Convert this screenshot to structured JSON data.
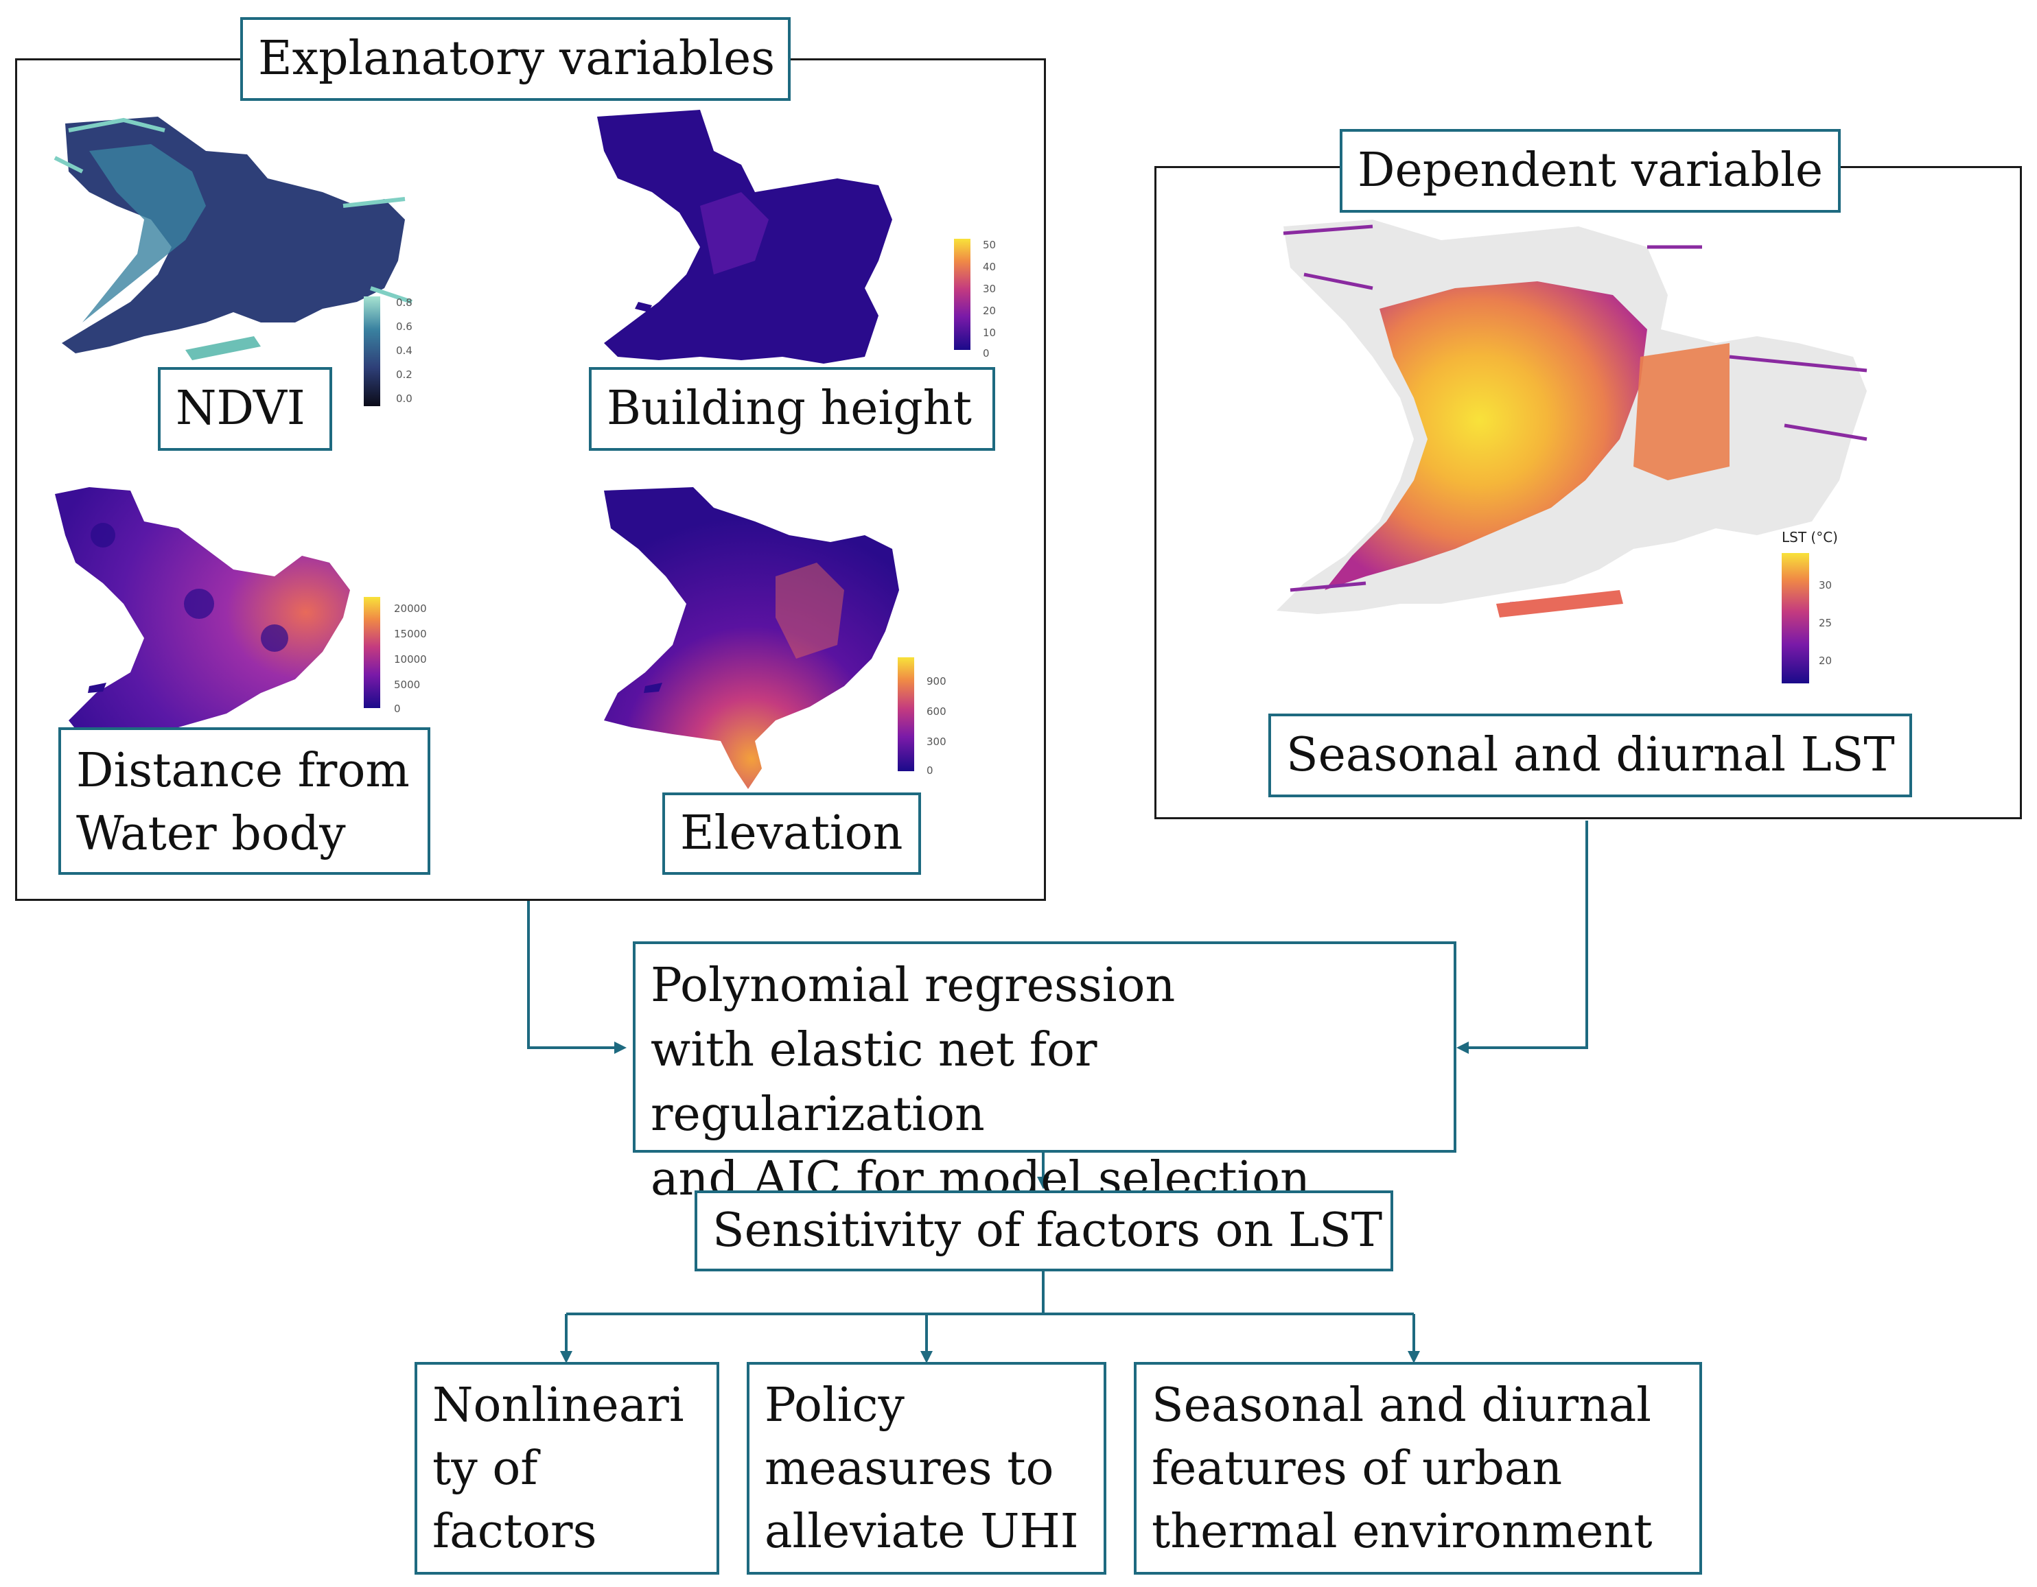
{
  "left_panel": {
    "title": "Explanatory variables",
    "maps": [
      {
        "label": "NDVI",
        "colorbar_ticks": [
          "0.8",
          "0.6",
          "0.4",
          "0.2",
          "0.0"
        ]
      },
      {
        "label": "Building height",
        "colorbar_ticks": [
          "50",
          "40",
          "30",
          "20",
          "10",
          "0"
        ]
      },
      {
        "label": "Distance from\nWater body",
        "colorbar_ticks": [
          "20000",
          "15000",
          "10000",
          "5000",
          "0"
        ]
      },
      {
        "label": "Elevation",
        "colorbar_ticks": [
          "900",
          "600",
          "300",
          "0"
        ]
      }
    ]
  },
  "right_panel": {
    "title": "Dependent variable",
    "map": {
      "label": "Seasonal and diurnal LST",
      "colorbar_title": "LST (°C)",
      "colorbar_ticks": [
        "30",
        "25",
        "20"
      ]
    }
  },
  "process": {
    "method": "Polynomial regression\nwith elastic net for regularization\nand AIC for model selection",
    "sensitivity": "Sensitivity of factors on LST"
  },
  "outcomes": [
    "Nonlineari\nty of\nfactors",
    "Policy\nmeasures to\nalleviate UHI",
    "Seasonal and diurnal\nfeatures of urban\nthermal environment"
  ],
  "colors": {
    "box_border": "#1e6a80",
    "arrow": "#1e6a80",
    "panel_border": "#1a1a1a",
    "ndvi_ramp": [
      "#0b0b18",
      "#2e3f78",
      "#3a82a0",
      "#a6e3d1"
    ],
    "plasma_ramp": [
      "#1a0a8a",
      "#7a1aa8",
      "#c43b7f",
      "#f08a45",
      "#f8e23a"
    ]
  }
}
